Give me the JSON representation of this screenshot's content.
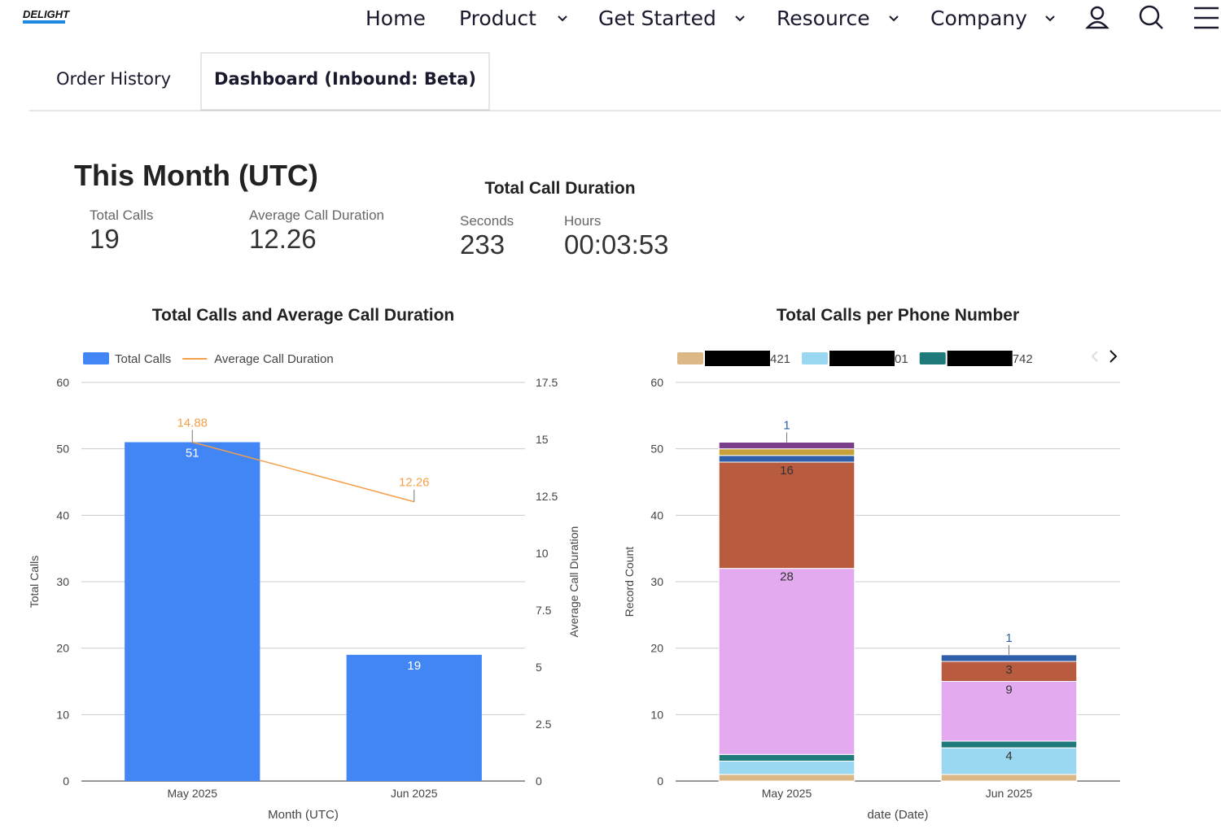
{
  "nav": {
    "logo": "DELIGHT",
    "items": [
      "Home",
      "Product",
      "Get Started",
      "Resource",
      "Company"
    ]
  },
  "tabs": [
    "Order History",
    "Dashboard (Inbound: Beta)"
  ],
  "summary": {
    "title": "This Month (UTC)",
    "metrics": [
      {
        "label": "Total Calls",
        "value": "19"
      },
      {
        "label": "Average Call Duration",
        "value": "12.26"
      }
    ],
    "duration": {
      "title": "Total Call Duration",
      "metrics": [
        {
          "label": "Seconds",
          "value": "233"
        },
        {
          "label": "Hours",
          "value": "00:03:53"
        }
      ]
    }
  },
  "chart_data": [
    {
      "type": "combo",
      "title": "Total Calls and Average Call Duration",
      "x_label": "Month (UTC)",
      "y_label": "Total Calls",
      "y2_label": "Average Call Duration",
      "categories": [
        "May 2025",
        "Jun 2025"
      ],
      "series": [
        {
          "name": "Total Calls",
          "type": "bar",
          "color": "#4285f4",
          "values": [
            51,
            19
          ]
        },
        {
          "name": "Average Call Duration",
          "type": "line",
          "axis": "y2",
          "color": "#f4a04a",
          "values": [
            14.88,
            12.26
          ]
        }
      ],
      "ylim": [
        0,
        60
      ],
      "yticks": [
        0,
        10,
        20,
        30,
        40,
        50,
        60
      ],
      "y2lim": [
        0,
        17.5
      ],
      "y2ticks": [
        0,
        2.5,
        5,
        7.5,
        10,
        12.5,
        15,
        17.5
      ],
      "grid": true
    },
    {
      "type": "stacked_bar",
      "title": "Total Calls per Phone Number",
      "x_label": "date (Date)",
      "y_label": "Record Count",
      "categories": [
        "May 2025",
        "Jun 2025"
      ],
      "series": [
        {
          "name": "421",
          "color": "#dbb886",
          "values": [
            1,
            1
          ]
        },
        {
          "name": "01",
          "color": "#9ad8f2",
          "values": [
            2,
            4
          ]
        },
        {
          "name": "742",
          "color": "#1f7a7a",
          "values": [
            1,
            1
          ]
        },
        {
          "color": "#e3aaf0",
          "values": [
            28,
            9
          ]
        },
        {
          "color": "#b95b3f",
          "values": [
            16,
            3
          ]
        },
        {
          "color": "#2f5fa8",
          "values": [
            1,
            1
          ]
        },
        {
          "color": "#c9a13a",
          "values": [
            1,
            null
          ]
        },
        {
          "color": "#7b3f8a",
          "values": [
            1,
            null
          ]
        }
      ],
      "ylim": [
        0,
        60
      ],
      "yticks": [
        0,
        10,
        20,
        30,
        40,
        50,
        60
      ],
      "grid": true
    }
  ]
}
